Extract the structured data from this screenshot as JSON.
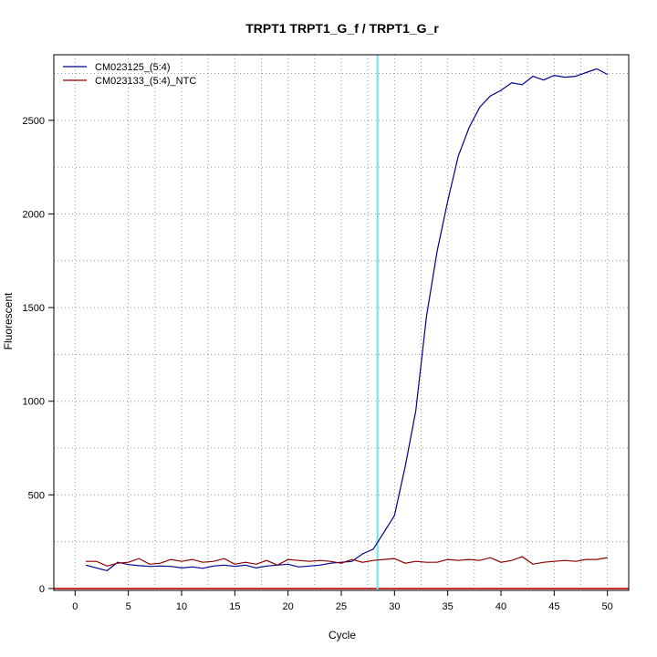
{
  "chart_data": {
    "type": "line",
    "title": "TRPT1  TRPT1_G_f / TRPT1_G_r",
    "xlabel": "Cycle",
    "ylabel": "Fluorescent",
    "xlim": [
      -2,
      52
    ],
    "ylim": [
      -10,
      2850
    ],
    "x_ticks": [
      0,
      5,
      10,
      15,
      20,
      25,
      30,
      35,
      40,
      45,
      50
    ],
    "y_ticks": [
      0,
      500,
      1000,
      1500,
      2000,
      2500
    ],
    "x_grid_minor": [
      7.5,
      12.5,
      17.5,
      22.5,
      27.5,
      32.5,
      37.5,
      42.5,
      47.5
    ],
    "y_grid_minor": [
      250,
      750,
      1250,
      1750,
      2250,
      2750
    ],
    "grid": true,
    "legend_position": "top-left",
    "threshold_x": 28.4,
    "threshold_color": "#66e6f0",
    "baseline_y": 0,
    "baseline_color": "#cc3333",
    "series": [
      {
        "name": "CM023125_(5:4)",
        "color": "#00008b",
        "x": [
          1,
          2,
          3,
          4,
          5,
          6,
          7,
          8,
          9,
          10,
          11,
          12,
          13,
          14,
          15,
          16,
          17,
          18,
          19,
          20,
          21,
          22,
          23,
          24,
          25,
          26,
          27,
          28,
          29,
          30,
          31,
          32,
          33,
          34,
          35,
          36,
          37,
          38,
          39,
          40,
          41,
          42,
          43,
          44,
          45,
          46,
          47,
          48,
          49,
          50
        ],
        "values": [
          125,
          110,
          95,
          140,
          128,
          122,
          118,
          120,
          118,
          110,
          115,
          108,
          120,
          125,
          118,
          125,
          110,
          120,
          125,
          130,
          115,
          120,
          125,
          135,
          140,
          145,
          185,
          210,
          300,
          390,
          650,
          950,
          1450,
          1800,
          2070,
          2310,
          2460,
          2570,
          2630,
          2660,
          2700,
          2690,
          2735,
          2715,
          2740,
          2730,
          2735,
          2755,
          2775,
          2745
        ]
      },
      {
        "name": "CM023133_(5:4)_NTC",
        "color": "#8b0000",
        "x": [
          1,
          2,
          3,
          4,
          5,
          6,
          7,
          8,
          9,
          10,
          11,
          12,
          13,
          14,
          15,
          16,
          17,
          18,
          19,
          20,
          21,
          22,
          23,
          24,
          25,
          26,
          27,
          28,
          29,
          30,
          31,
          32,
          33,
          34,
          35,
          36,
          37,
          38,
          39,
          40,
          41,
          42,
          43,
          44,
          45,
          46,
          47,
          48,
          49,
          50
        ],
        "values": [
          145,
          145,
          120,
          135,
          140,
          160,
          130,
          135,
          155,
          145,
          155,
          140,
          145,
          160,
          130,
          140,
          130,
          150,
          125,
          155,
          150,
          145,
          150,
          145,
          135,
          155,
          140,
          150,
          155,
          160,
          135,
          145,
          140,
          140,
          155,
          150,
          155,
          150,
          165,
          140,
          150,
          170,
          130,
          140,
          145,
          150,
          145,
          155,
          155,
          165
        ]
      }
    ]
  }
}
